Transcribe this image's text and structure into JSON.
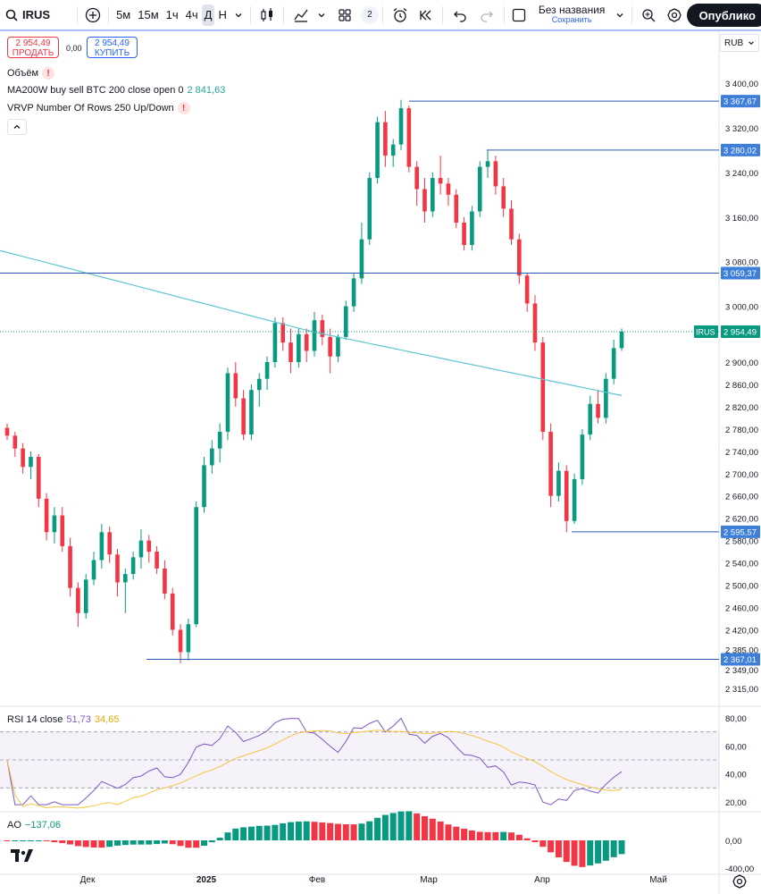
{
  "toolbar": {
    "symbol": "IRUS",
    "intervals": [
      "5м",
      "15м",
      "1ч",
      "4ч",
      "Д",
      "Н"
    ],
    "active_interval": "Д",
    "layout_badge": "2",
    "title": "Без названия",
    "save_label": "Сохранить",
    "publish_label": "Опублико"
  },
  "trade": {
    "sell_price": "2 954,49",
    "sell_label": "ПРОДАТЬ",
    "spread": "0,00",
    "buy_price": "2 954,49",
    "buy_label": "КУПИТЬ"
  },
  "legend": {
    "volume": "Объём",
    "ma_name": "MA200W buy sell BTC 200 close open 0",
    "ma_value": "2 841,63",
    "vrvp": "VRVP Number Of Rows 250 Up/Down"
  },
  "currency": "RUB",
  "price_axis": {
    "ticks": [
      "3 400,00",
      "3 320,00",
      "3 240,00",
      "3 160,00",
      "3 080,00",
      "3 000,00",
      "2 900,00",
      "2 860,00",
      "2 820,00",
      "2 780,00",
      "2 740,00",
      "2 700,00",
      "2 660,00",
      "2 620,00",
      "2 580,00",
      "2 540,00",
      "2 500,00",
      "2 460,00",
      "2 420,00",
      "2 385,00",
      "2 349,00",
      "2 315,00"
    ],
    "levels": [
      {
        "label": "3 367,67",
        "value": 3367.67
      },
      {
        "label": "3 280,02",
        "value": 3280.02
      },
      {
        "label": "3 059,37",
        "value": 3059.37
      },
      {
        "label": "2 595,57",
        "value": 2595.57
      },
      {
        "label": "2 367,01",
        "value": 2367.01
      }
    ],
    "last": {
      "symbol": "IRUS",
      "label": "2 954,49",
      "value": 2954.49
    }
  },
  "time_axis": [
    "Дек",
    "2025",
    "Фев",
    "Мар",
    "Апр",
    "Май"
  ],
  "rsi": {
    "label": "RSI 14 close",
    "value": "51,73",
    "ma_value": "34,65",
    "ticks": [
      "80,00",
      "60,00",
      "40,00",
      "20,00"
    ]
  },
  "ao": {
    "label": "AO",
    "value": "−137,06",
    "ticks": [
      "0,00",
      "-400,00"
    ]
  },
  "colors": {
    "up": "#089981",
    "down": "#f23645",
    "ma": "#5fc6d0",
    "rsi": "#7e57c2",
    "rsi_ma": "#f6c343",
    "level": "#2a5bb3",
    "level_fill": "#3e7fd9"
  },
  "chart_data": {
    "type": "candlestick",
    "series": [
      {
        "name": "IRUS",
        "values": [
          [
            2782,
            2790,
            2760,
            2768
          ],
          [
            2768,
            2775,
            2730,
            2745
          ],
          [
            2745,
            2755,
            2700,
            2712
          ],
          [
            2712,
            2740,
            2690,
            2730
          ],
          [
            2730,
            2735,
            2640,
            2655
          ],
          [
            2655,
            2665,
            2580,
            2595
          ],
          [
            2595,
            2640,
            2575,
            2625
          ],
          [
            2625,
            2640,
            2560,
            2570
          ],
          [
            2570,
            2585,
            2480,
            2495
          ],
          [
            2495,
            2505,
            2425,
            2450
          ],
          [
            2450,
            2520,
            2440,
            2510
          ],
          [
            2510,
            2560,
            2500,
            2545
          ],
          [
            2545,
            2610,
            2530,
            2595
          ],
          [
            2595,
            2605,
            2540,
            2555
          ],
          [
            2555,
            2565,
            2480,
            2505
          ],
          [
            2505,
            2530,
            2450,
            2520
          ],
          [
            2520,
            2560,
            2510,
            2550
          ],
          [
            2550,
            2600,
            2530,
            2580
          ],
          [
            2580,
            2590,
            2540,
            2560
          ],
          [
            2560,
            2570,
            2520,
            2530
          ],
          [
            2530,
            2545,
            2475,
            2485
          ],
          [
            2485,
            2495,
            2410,
            2420
          ],
          [
            2420,
            2430,
            2360,
            2380
          ],
          [
            2380,
            2440,
            2365,
            2430
          ],
          [
            2430,
            2650,
            2425,
            2640
          ],
          [
            2640,
            2730,
            2630,
            2715
          ],
          [
            2715,
            2760,
            2700,
            2745
          ],
          [
            2745,
            2790,
            2720,
            2775
          ],
          [
            2775,
            2890,
            2760,
            2880
          ],
          [
            2880,
            2900,
            2820,
            2835
          ],
          [
            2835,
            2850,
            2760,
            2770
          ],
          [
            2770,
            2860,
            2760,
            2850
          ],
          [
            2850,
            2880,
            2820,
            2870
          ],
          [
            2870,
            2910,
            2850,
            2900
          ],
          [
            2900,
            2980,
            2890,
            2970
          ],
          [
            2970,
            2980,
            2920,
            2935
          ],
          [
            2935,
            2960,
            2880,
            2900
          ],
          [
            2900,
            2960,
            2890,
            2950
          ],
          [
            2950,
            2960,
            2900,
            2920
          ],
          [
            2920,
            2990,
            2910,
            2975
          ],
          [
            2975,
            2985,
            2930,
            2945
          ],
          [
            2945,
            2960,
            2880,
            2910
          ],
          [
            2910,
            2950,
            2900,
            2945
          ],
          [
            2945,
            3010,
            2940,
            3000
          ],
          [
            3000,
            3060,
            2990,
            3050
          ],
          [
            3050,
            3150,
            3040,
            3120
          ],
          [
            3120,
            3240,
            3110,
            3230
          ],
          [
            3230,
            3340,
            3220,
            3330
          ],
          [
            3330,
            3350,
            3250,
            3270
          ],
          [
            3270,
            3300,
            3250,
            3290
          ],
          [
            3290,
            3370,
            3280,
            3355
          ],
          [
            3355,
            3360,
            3240,
            3250
          ],
          [
            3250,
            3260,
            3180,
            3210
          ],
          [
            3210,
            3230,
            3150,
            3170
          ],
          [
            3170,
            3240,
            3160,
            3230
          ],
          [
            3230,
            3270,
            3200,
            3220
          ],
          [
            3220,
            3230,
            3180,
            3200
          ],
          [
            3200,
            3210,
            3140,
            3150
          ],
          [
            3150,
            3160,
            3100,
            3110
          ],
          [
            3110,
            3180,
            3100,
            3170
          ],
          [
            3170,
            3260,
            3160,
            3250
          ],
          [
            3250,
            3280,
            3230,
            3260
          ],
          [
            3260,
            3270,
            3200,
            3215
          ],
          [
            3215,
            3230,
            3160,
            3175
          ],
          [
            3175,
            3190,
            3110,
            3120
          ],
          [
            3120,
            3130,
            3040,
            3055
          ],
          [
            3055,
            3060,
            2990,
            3005
          ],
          [
            3005,
            3020,
            2920,
            2935
          ],
          [
            2935,
            2945,
            2760,
            2775
          ],
          [
            2775,
            2790,
            2640,
            2660
          ],
          [
            2660,
            2720,
            2650,
            2705
          ],
          [
            2705,
            2715,
            2595,
            2615
          ],
          [
            2615,
            2700,
            2610,
            2690
          ],
          [
            2690,
            2780,
            2680,
            2770
          ],
          [
            2770,
            2840,
            2760,
            2825
          ],
          [
            2825,
            2850,
            2790,
            2800
          ],
          [
            2800,
            2880,
            2790,
            2870
          ],
          [
            2870,
            2940,
            2860,
            2925
          ],
          [
            2925,
            2960,
            2920,
            2954.49
          ]
        ]
      }
    ],
    "ma200w": {
      "name": "MA200W",
      "value": 2841.63
    },
    "y_range": [
      2290,
      3430
    ],
    "x_labels": [
      "Дек",
      "2025",
      "Фев",
      "Мар",
      "Апр",
      "Май"
    ]
  }
}
